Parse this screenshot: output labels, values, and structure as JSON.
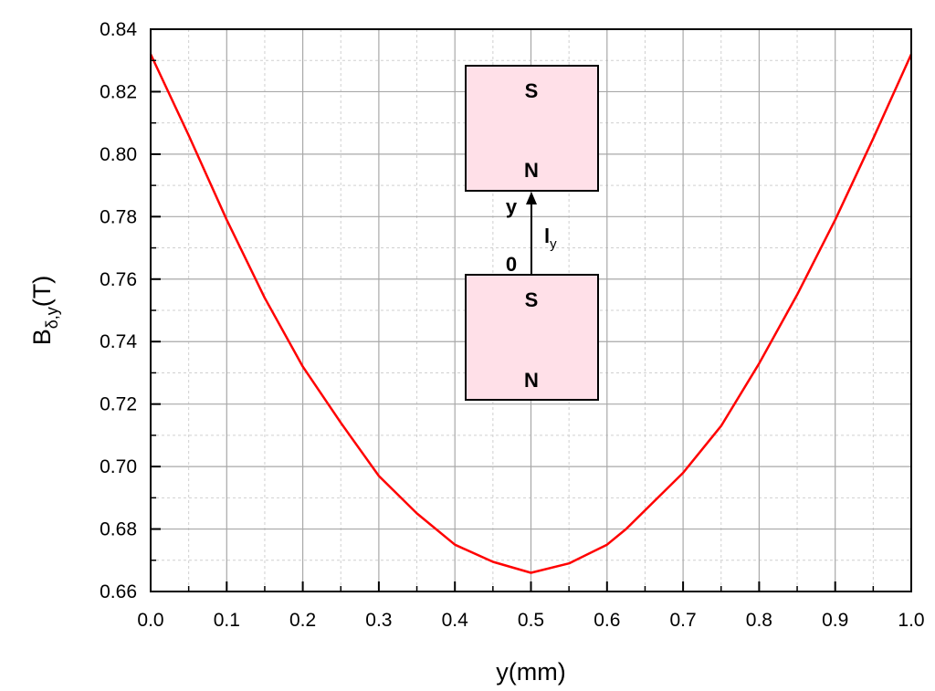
{
  "chart_data": {
    "type": "line",
    "xlabel": "y(mm)",
    "ylabel": {
      "main": "B",
      "sub": "δ,y",
      "unit": "(T)"
    },
    "xlim": [
      0.0,
      1.0
    ],
    "ylim": [
      0.66,
      0.84
    ],
    "x_ticks": [
      "0.0",
      "0.1",
      "0.2",
      "0.3",
      "0.4",
      "0.5",
      "0.6",
      "0.7",
      "0.8",
      "0.9",
      "1.0"
    ],
    "y_ticks": [
      "0.66",
      "0.68",
      "0.70",
      "0.72",
      "0.74",
      "0.76",
      "0.78",
      "0.80",
      "0.82",
      "0.84"
    ],
    "grid": true,
    "line_color": "#ff0000",
    "series": [
      {
        "x": [
          0.0,
          0.05,
          0.1,
          0.15,
          0.2,
          0.25,
          0.3,
          0.35,
          0.4,
          0.45,
          0.5,
          0.55,
          0.6,
          0.625,
          0.65,
          0.7,
          0.75,
          0.8,
          0.85,
          0.9,
          0.95,
          1.0
        ],
        "y": [
          0.832,
          0.806,
          0.779,
          0.754,
          0.732,
          0.714,
          0.697,
          0.685,
          0.675,
          0.6695,
          0.666,
          0.669,
          0.675,
          0.68,
          0.686,
          0.698,
          0.713,
          0.733,
          0.755,
          0.779,
          0.805,
          0.832
        ]
      }
    ],
    "inset": {
      "top_magnet": {
        "upper_pole": "S",
        "lower_pole": "N"
      },
      "bottom_magnet": {
        "upper_pole": "S",
        "lower_pole": "N"
      },
      "axis_label": "y",
      "origin_label": "0",
      "gap_label": {
        "main": "l",
        "sub": "y"
      },
      "magnet_fill": "#ffe0e8"
    }
  }
}
